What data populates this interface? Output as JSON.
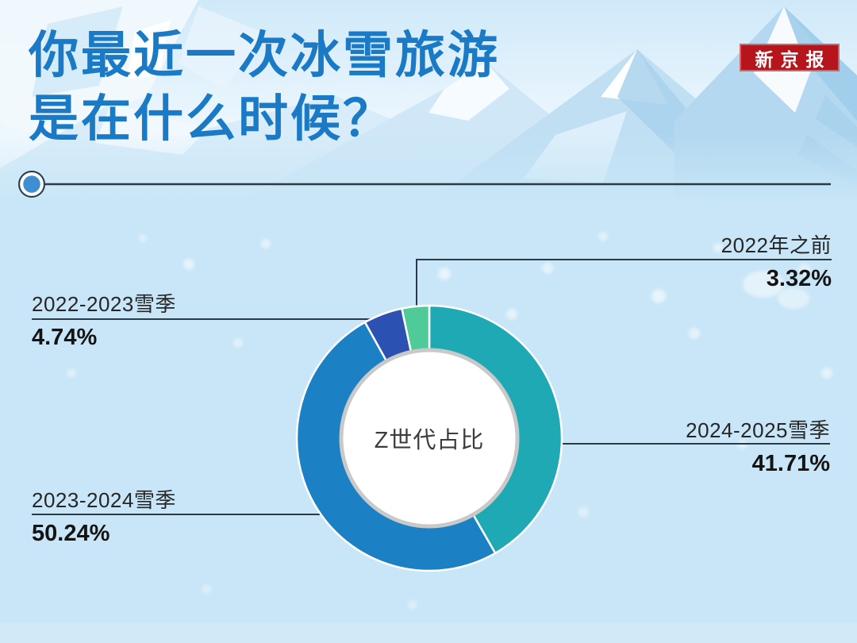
{
  "brand": {
    "logo_text": "新京报",
    "logo_bg": "#b6151b"
  },
  "header": {
    "title_line1": "你最近一次冰雪旅游",
    "title_line2": "是在什么时候？",
    "title_color": "#1b7ac6"
  },
  "chart_data": {
    "type": "pie",
    "subtype": "donut",
    "title": "你最近一次冰雪旅游是在什么时候？",
    "center_label": "Z世代占比",
    "direction": "clockwise",
    "start_angle_deg": 0,
    "legend_position": "callouts",
    "segments": [
      {
        "label": "2024-2025雪季",
        "value": 41.71,
        "value_label": "41.71%",
        "color": "#1ea9b5"
      },
      {
        "label": "2023-2024雪季",
        "value": 50.24,
        "value_label": "50.24%",
        "color": "#1b80c4"
      },
      {
        "label": "2022-2023雪季",
        "value": 4.74,
        "value_label": "4.74%",
        "color": "#2b51b2"
      },
      {
        "label": "2022年之前",
        "value": 3.32,
        "value_label": "3.32%",
        "color": "#4ecb99"
      }
    ]
  }
}
